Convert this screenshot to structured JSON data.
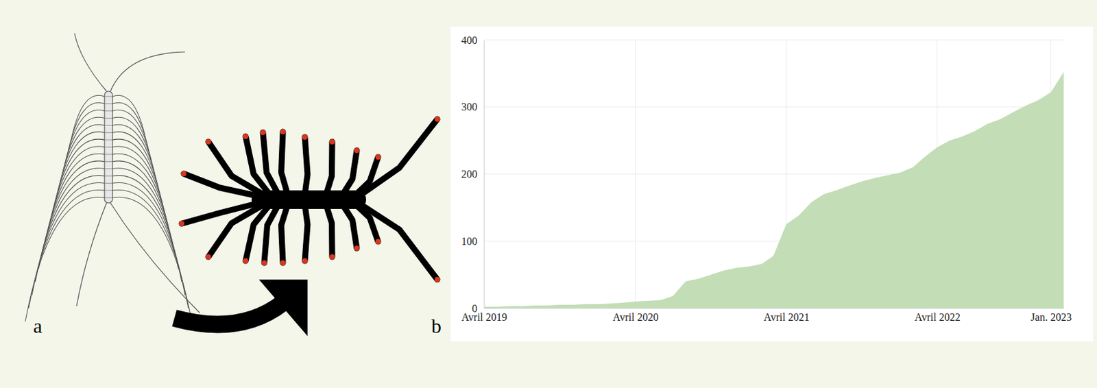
{
  "figure": {
    "panel_labels": [
      "a",
      "b"
    ]
  },
  "chart_data": {
    "type": "area",
    "x": [
      "2019-04",
      "2019-05",
      "2019-06",
      "2019-07",
      "2019-08",
      "2019-09",
      "2019-10",
      "2019-11",
      "2019-12",
      "2020-01",
      "2020-02",
      "2020-03",
      "2020-04",
      "2020-05",
      "2020-06",
      "2020-07",
      "2020-08",
      "2020-09",
      "2020-10",
      "2020-11",
      "2020-12",
      "2021-01",
      "2021-02",
      "2021-03",
      "2021-04",
      "2021-05",
      "2021-06",
      "2021-07",
      "2021-08",
      "2021-09",
      "2021-10",
      "2021-11",
      "2021-12",
      "2022-01",
      "2022-02",
      "2022-03",
      "2022-04",
      "2022-05",
      "2022-06",
      "2022-07",
      "2022-08",
      "2022-09",
      "2022-10",
      "2022-11",
      "2022-12",
      "2023-01",
      "2023-02"
    ],
    "values": [
      2,
      2,
      3,
      3,
      4,
      4,
      5,
      5,
      6,
      6,
      7,
      8,
      10,
      11,
      12,
      18,
      40,
      44,
      50,
      56,
      60,
      62,
      66,
      78,
      125,
      138,
      158,
      170,
      176,
      183,
      189,
      194,
      198,
      202,
      210,
      225,
      240,
      250,
      256,
      264,
      275,
      282,
      292,
      302,
      310,
      322,
      352
    ],
    "color": "#c3ddb6",
    "xlim": [
      "2019-04",
      "2023-02"
    ],
    "xticks": [
      {
        "value": "2019-04",
        "label": "Avril 2019"
      },
      {
        "value": "2020-04",
        "label": "Avril 2020"
      },
      {
        "value": "2021-04",
        "label": "Avril 2021"
      },
      {
        "value": "2022-04",
        "label": "Avril 2022"
      },
      {
        "value": "2023-01",
        "label": "Jan. 2023"
      }
    ],
    "ylim": [
      0,
      400
    ],
    "yticks": [
      0,
      100,
      200,
      300,
      400
    ],
    "grid": true
  }
}
